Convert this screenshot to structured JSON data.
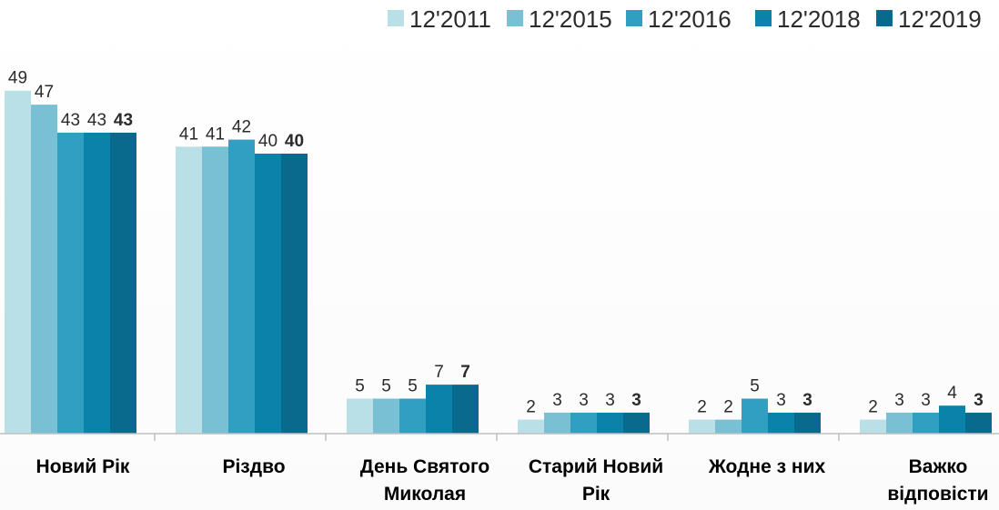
{
  "chart_data": {
    "type": "bar",
    "categories": [
      [
        "Новий Рік"
      ],
      [
        "Різдво"
      ],
      [
        "День Святого",
        "Миколая"
      ],
      [
        "Старий Новий",
        "Рік"
      ],
      [
        "Жодне з них"
      ],
      [
        "Важко",
        "відповісти"
      ]
    ],
    "series": [
      {
        "name": "12'2011",
        "color": "#b9dfe7",
        "values": [
          49,
          41,
          5,
          2,
          2,
          2
        ]
      },
      {
        "name": "12'2015",
        "color": "#79c0d4",
        "values": [
          47,
          41,
          5,
          3,
          2,
          3
        ]
      },
      {
        "name": "12'2016",
        "color": "#319fc1",
        "values": [
          43,
          42,
          5,
          3,
          5,
          3
        ]
      },
      {
        "name": "12'2018",
        "color": "#0b82aa",
        "values": [
          43,
          40,
          7,
          3,
          3,
          4
        ]
      },
      {
        "name": "12'2019",
        "color": "#0a6a8e",
        "values": [
          43,
          40,
          7,
          3,
          3,
          3
        ]
      }
    ],
    "bold_series_index": 4,
    "ylim": [
      0,
      50
    ],
    "grid": false,
    "legend_position": "top-right",
    "axis_color": "#bfbfbf"
  }
}
